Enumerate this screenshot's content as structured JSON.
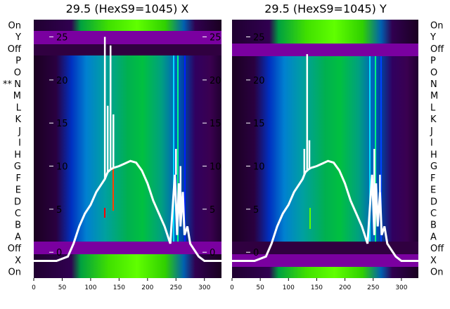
{
  "chart_data": [
    {
      "type": "heatmap",
      "title": "29.5 (HexS9=1045) X",
      "row_labels": [
        "On",
        "Y",
        "Off",
        "P",
        "O",
        "N",
        "M",
        "L",
        "K",
        "J",
        "I",
        "H",
        "G",
        "F",
        "E",
        "D",
        "C",
        "B",
        "A",
        "Off",
        "X",
        "On"
      ],
      "row_markers": {
        "N": "**"
      },
      "xlim": [
        0,
        330
      ],
      "xticks": [
        0,
        50,
        100,
        150,
        200,
        250,
        300
      ],
      "overlay": {
        "type": "line",
        "ylim": [
          -3,
          27
        ],
        "yticks": [
          0,
          5,
          10,
          15,
          20,
          25
        ],
        "x": [
          0,
          40,
          60,
          70,
          80,
          90,
          100,
          110,
          120,
          125,
          128,
          130,
          135,
          140,
          145,
          150,
          160,
          170,
          180,
          190,
          200,
          210,
          220,
          230,
          240,
          245,
          248,
          252,
          255,
          258,
          262,
          265,
          270,
          275,
          280,
          290,
          300,
          330
        ],
        "y": [
          -1,
          -1,
          -0.5,
          1,
          3,
          4.5,
          5.5,
          7,
          8,
          8.5,
          9,
          9.3,
          9.6,
          9.8,
          9.9,
          10,
          10.3,
          10.6,
          10.4,
          9.5,
          8,
          6,
          4.5,
          3,
          1,
          6,
          9,
          2,
          8,
          3,
          7,
          2,
          3,
          1,
          0.5,
          -0.5,
          -1,
          -1
        ],
        "spikes": [
          {
            "x": 125,
            "y": 25
          },
          {
            "x": 130,
            "y": 17
          },
          {
            "x": 135,
            "y": 24
          },
          {
            "x": 140,
            "y": 16
          },
          {
            "x": 250,
            "y": 12
          },
          {
            "x": 258,
            "y": 10
          }
        ]
      }
    },
    {
      "type": "heatmap",
      "title": "29.5 (HexS9=1045) Y",
      "row_labels": [
        "On",
        "Y",
        "Off",
        "P",
        "O",
        "N",
        "M",
        "L",
        "K",
        "J",
        "I",
        "H",
        "G",
        "F",
        "E",
        "D",
        "C",
        "B",
        "A",
        "Off",
        "X",
        "On"
      ],
      "xlim": [
        0,
        330
      ],
      "xticks": [
        0,
        50,
        100,
        150,
        200,
        250,
        300
      ],
      "overlay": {
        "type": "line",
        "ylim": [
          -3,
          27
        ],
        "yticks": [
          0,
          5,
          10,
          15,
          20,
          25
        ],
        "x": [
          0,
          40,
          60,
          70,
          80,
          90,
          100,
          110,
          120,
          125,
          128,
          130,
          135,
          140,
          145,
          150,
          160,
          170,
          180,
          190,
          200,
          210,
          220,
          230,
          240,
          245,
          248,
          252,
          255,
          258,
          262,
          265,
          270,
          275,
          280,
          290,
          300,
          330
        ],
        "y": [
          -1,
          -1,
          -0.5,
          1,
          3,
          4.5,
          5.5,
          7,
          8,
          8.5,
          9,
          9.3,
          9.6,
          9.8,
          9.9,
          10,
          10.3,
          10.6,
          10.4,
          9.5,
          8,
          6,
          4.5,
          3,
          1,
          6,
          9,
          2,
          8,
          3,
          7,
          2,
          3,
          1,
          0.5,
          -0.5,
          -1,
          -1
        ],
        "spikes": [
          {
            "x": 128,
            "y": 12
          },
          {
            "x": 133,
            "y": 23
          },
          {
            "x": 137,
            "y": 13
          },
          {
            "x": 252,
            "y": 12
          },
          {
            "x": 262,
            "y": 9
          }
        ]
      }
    }
  ]
}
